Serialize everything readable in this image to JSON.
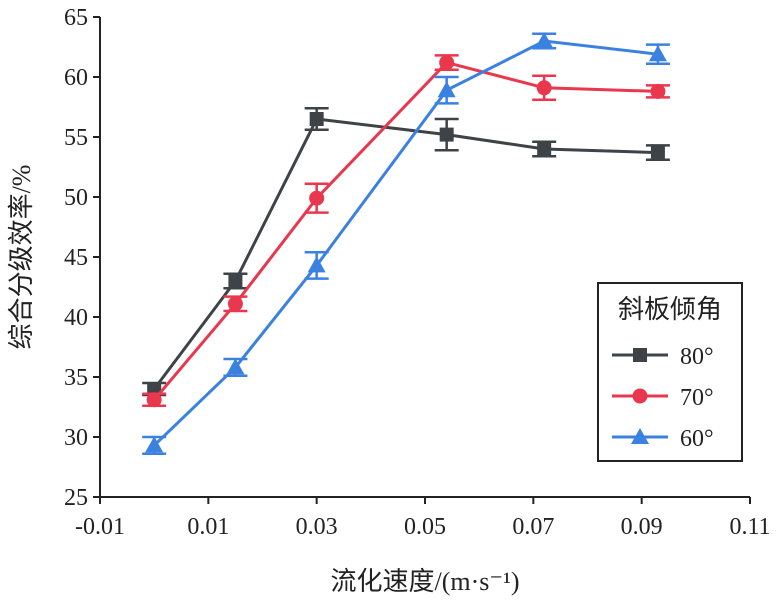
{
  "chart_data": {
    "type": "line",
    "title": "",
    "xlabel": "流化速度/(m·s⁻¹)",
    "ylabel": "综合分级效率/%",
    "xlim": [
      -0.01,
      0.11
    ],
    "ylim": [
      25,
      65
    ],
    "xticks": [
      -0.01,
      0.01,
      0.03,
      0.05,
      0.07,
      0.09,
      0.11
    ],
    "xtick_labels": [
      "-0.01",
      "0.01",
      "0.03",
      "0.05",
      "0.07",
      "0.09",
      "0.11"
    ],
    "yticks": [
      25,
      30,
      35,
      40,
      45,
      50,
      55,
      60,
      65
    ],
    "ytick_labels": [
      "25",
      "30",
      "35",
      "40",
      "45",
      "50",
      "55",
      "60",
      "65"
    ],
    "grid": false,
    "legend": {
      "title": "斜板倾角",
      "placement": "lower-right"
    },
    "series": [
      {
        "name": "80°",
        "color": "#3d4347",
        "marker": "square",
        "x": [
          0.0,
          0.015,
          0.03,
          0.054,
          0.072,
          0.093
        ],
        "y": [
          34.0,
          43.0,
          56.5,
          55.2,
          54.0,
          53.7
        ],
        "err": [
          0.5,
          0.6,
          0.9,
          1.3,
          0.6,
          0.6
        ]
      },
      {
        "name": "70°",
        "color": "#e9384e",
        "marker": "circle",
        "x": [
          0.0,
          0.015,
          0.03,
          0.054,
          0.072,
          0.093
        ],
        "y": [
          33.1,
          41.1,
          49.9,
          61.2,
          59.1,
          58.8
        ],
        "err": [
          0.5,
          0.6,
          1.2,
          0.6,
          1.0,
          0.5
        ]
      },
      {
        "name": "60°",
        "color": "#3b82e0",
        "marker": "triangle",
        "x": [
          0.0,
          0.015,
          0.03,
          0.054,
          0.072,
          0.093
        ],
        "y": [
          29.3,
          35.8,
          44.3,
          58.9,
          63.0,
          61.9
        ],
        "err": [
          0.7,
          0.7,
          1.1,
          1.1,
          0.6,
          0.8
        ]
      }
    ]
  }
}
